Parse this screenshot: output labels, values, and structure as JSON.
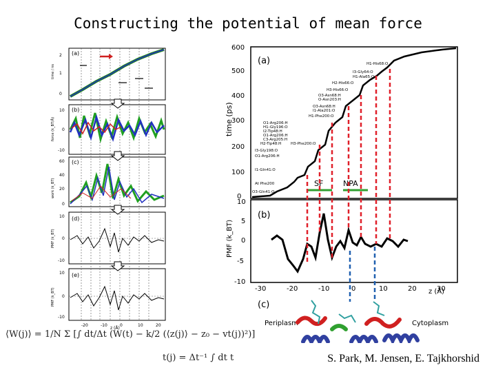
{
  "title": "Constructing the potential of mean force",
  "credit": "S. Park, M. Jensen, E. Tajkhorshid",
  "equation": {
    "line1": "⟨W(j)⟩ = 1/N Σ [∫ dt/Δt (W(t) − k/2 (⟨z(j)⟩ − z₀ − vt(j))²)]",
    "line2": "t(j) = Δt⁻¹ ∫ dt t"
  },
  "left_panels": {
    "a": {
      "label": "(a)",
      "ylabel": "time / ns",
      "yticks": [
        "2",
        "1",
        "0"
      ]
    },
    "b": {
      "label": "(b)",
      "ylabel": "force (k_BT/Å)",
      "yticks": [
        "10",
        "0",
        "-10"
      ]
    },
    "c": {
      "label": "(c)",
      "ylabel": "work (k_BT)",
      "yticks": [
        "60",
        "40",
        "20",
        "0"
      ]
    },
    "d": {
      "label": "(d)",
      "ylabel": "PMF (k_BT)",
      "yticks": [
        "10",
        "0",
        "-10"
      ]
    },
    "e": {
      "label": "(e)",
      "ylabel": "PMF (k_BT)",
      "yticks": [
        "10",
        "0",
        "-10"
      ]
    },
    "xaxis": {
      "label": "z (Å)",
      "ticks": [
        "-20",
        "-10",
        "0",
        "10",
        "20"
      ]
    }
  },
  "right_panels": {
    "a": {
      "label": "(a)",
      "ylabel": "time (ps)",
      "yticks": [
        "600",
        "500",
        "400",
        "300",
        "200",
        "100",
        "0"
      ],
      "annotations": [
        "H1-His68:O",
        "I3-Gly64:O",
        "H1-Ala65:O",
        "H2-His66:O",
        "H3-His66:O",
        "O3-Asn68:H",
        "O-Asn203:H",
        "O3-Asn68:H",
        "I1-Ala201:O",
        "H1-Phe200:O",
        "O1-Arg206:H",
        "H1-Gly196:O",
        "I2-Tip48:H",
        "O1-Arg206:H",
        "C3-Arg205:H",
        "H2-Tip48:H",
        "H3-Phe200:O",
        "I3-Gly198:O",
        "O1-Arg206:H",
        "I1-Gln41:O",
        "At Phe200",
        "O3-Gln41:O"
      ],
      "markers": [
        "SF",
        "NPA"
      ]
    },
    "b": {
      "label": "(b)",
      "ylabel": "PMF (k_BT)",
      "yticks": [
        "10",
        "5",
        "0",
        "-5",
        "-10"
      ],
      "xticks": [
        "-30",
        "-20",
        "-10",
        "0",
        "10",
        "20",
        "30"
      ],
      "xlabel": "z (Å)"
    },
    "c": {
      "label": "(c)",
      "left": "Periplasm",
      "right": "Cytoplasm"
    }
  },
  "colors": {
    "red_dash": "#e0202a",
    "blue_dash": "#2060b0",
    "green": "#30a030",
    "curve": "#000000"
  }
}
